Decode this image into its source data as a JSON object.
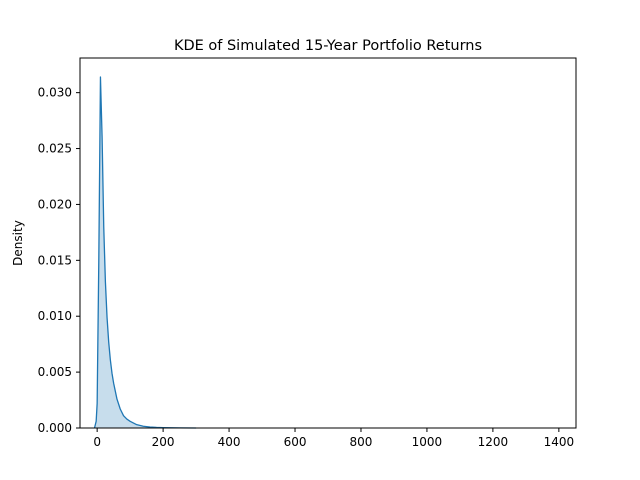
{
  "chart_data": {
    "type": "area",
    "title": "KDE of Simulated 15-Year Portfolio Returns",
    "xlabel": "",
    "ylabel": "Density",
    "xlim": [
      -52,
      1452
    ],
    "ylim": [
      0,
      0.0331
    ],
    "x_ticks": [
      0,
      200,
      400,
      600,
      800,
      1000,
      1200,
      1400
    ],
    "y_ticks": [
      0.0,
      0.005,
      0.01,
      0.015,
      0.02,
      0.025,
      0.03
    ],
    "y_tick_labels": [
      "0.000",
      "0.005",
      "0.010",
      "0.015",
      "0.020",
      "0.025",
      "0.030"
    ],
    "grid": false,
    "legend": "none",
    "colors": {
      "line": "#1f77b4",
      "fill": "#1f77b4",
      "fill_alpha": 0.25
    },
    "series": [
      {
        "x": [
          -8,
          -3,
          0,
          5,
          10,
          15,
          20,
          25,
          30,
          35,
          40,
          45,
          50,
          60,
          70,
          80,
          90,
          100,
          120,
          140,
          160,
          180,
          200,
          250,
          300
        ],
        "values": [
          0.0,
          0.0006,
          0.0022,
          0.015,
          0.0314,
          0.026,
          0.018,
          0.0131,
          0.0099,
          0.0077,
          0.0061,
          0.0049,
          0.004,
          0.0026,
          0.0017,
          0.0011,
          0.0008,
          0.0006,
          0.0003,
          0.00016,
          9e-05,
          5e-05,
          3e-05,
          1e-05,
          0.0
        ]
      }
    ]
  }
}
